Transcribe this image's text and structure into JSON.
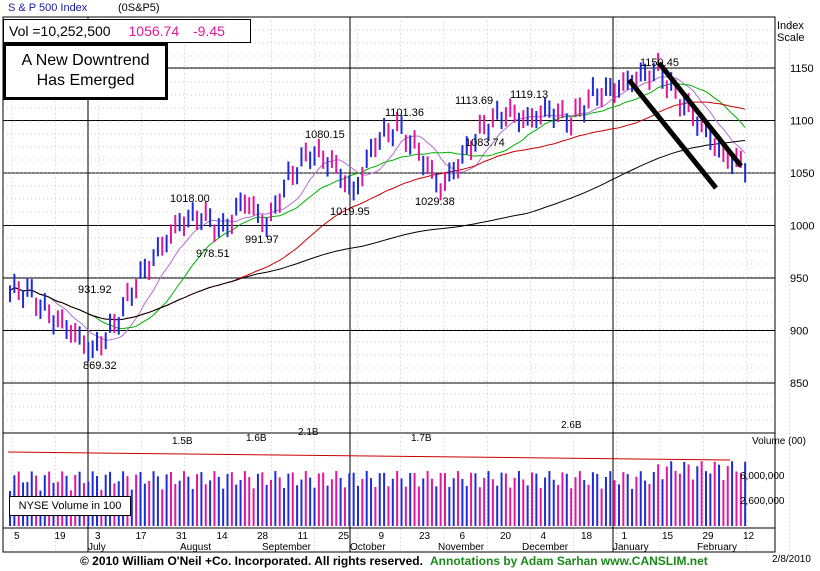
{
  "header": {
    "symbol": "S & P 500 Index",
    "code": "(0S&P5)",
    "volume": "Vol =10,252,500",
    "last": "1056.74",
    "change": "-9.45",
    "scale_label_1": "Index",
    "scale_label_2": "Scale"
  },
  "callout": {
    "line1": "A New Downtrend",
    "line2": "Has Emerged"
  },
  "volume_panel": {
    "legend": "NYSE  Volume in 100",
    "title": "Volume (00)",
    "ticks": [
      "6,000,000",
      "2,600,000"
    ],
    "annotations": [
      "1.5B",
      "1.6B",
      "2.1B",
      "1.7B",
      "2.6B"
    ]
  },
  "footer": {
    "copyright": "© 2010 William O'Neil +Co. Incorporated. All rights reserved.",
    "annotations": "Annotations by Adam Sarhan www.CANSLIM.net",
    "date": "2/8/2010"
  },
  "colors": {
    "up": "#1f2bd6",
    "down": "#e0169c",
    "ma_short": "#00b000",
    "ma_mid": "#cc0000",
    "ma_long": "#000000",
    "ma_10": "#b070d0",
    "accent_change": "#e0169c"
  },
  "chart_data": {
    "type": "line",
    "title": "S & P 500 Index",
    "y_axis": {
      "min": 800,
      "max": 1175,
      "ticks": [
        850,
        900,
        950,
        1000,
        1050,
        1100,
        1150
      ]
    },
    "x_ticks": [
      "5",
      "19",
      "3",
      "17",
      "31",
      "14",
      "28",
      "11",
      "25",
      "9",
      "23",
      "6",
      "20",
      "4",
      "18",
      "1",
      "15",
      "29",
      "12"
    ],
    "months": [
      "July",
      "August",
      "September",
      "October",
      "November",
      "December",
      "January",
      "February"
    ],
    "labeled_points": [
      {
        "label": "931.92",
        "value": 931.92
      },
      {
        "label": "869.32",
        "value": 869.32
      },
      {
        "label": "1018.00",
        "value": 1018.0
      },
      {
        "label": "978.51",
        "value": 978.51
      },
      {
        "label": "991.97",
        "value": 991.97
      },
      {
        "label": "1080.15",
        "value": 1080.15
      },
      {
        "label": "1019.95",
        "value": 1019.95
      },
      {
        "label": "1101.36",
        "value": 1101.36
      },
      {
        "label": "1029.38",
        "value": 1029.38
      },
      {
        "label": "1113.69",
        "value": 1113.69
      },
      {
        "label": "1083.74",
        "value": 1083.74
      },
      {
        "label": "1119.13",
        "value": 1119.13
      },
      {
        "label": "1150.45",
        "value": 1150.45
      }
    ],
    "weekly_close": [
      {
        "week": 1,
        "close": 938
      },
      {
        "week": 2,
        "close": 915
      },
      {
        "week": 3,
        "close": 900
      },
      {
        "week": 4,
        "close": 880
      },
      {
        "week": 5,
        "close": 905
      },
      {
        "week": 6,
        "close": 945
      },
      {
        "week": 7,
        "close": 975
      },
      {
        "week": 8,
        "close": 1003
      },
      {
        "week": 9,
        "close": 1010
      },
      {
        "week": 10,
        "close": 995
      },
      {
        "week": 11,
        "close": 1025
      },
      {
        "week": 12,
        "close": 1000
      },
      {
        "week": 13,
        "close": 1045
      },
      {
        "week": 14,
        "close": 1070
      },
      {
        "week": 15,
        "close": 1060
      },
      {
        "week": 16,
        "close": 1030
      },
      {
        "week": 17,
        "close": 1080
      },
      {
        "week": 18,
        "close": 1095
      },
      {
        "week": 19,
        "close": 1070
      },
      {
        "week": 20,
        "close": 1035
      },
      {
        "week": 21,
        "close": 1065
      },
      {
        "week": 22,
        "close": 1095
      },
      {
        "week": 23,
        "close": 1108
      },
      {
        "week": 24,
        "close": 1100
      },
      {
        "week": 25,
        "close": 1110
      },
      {
        "week": 26,
        "close": 1100
      },
      {
        "week": 27,
        "close": 1125
      },
      {
        "week": 28,
        "close": 1130
      },
      {
        "week": 29,
        "close": 1140
      },
      {
        "week": 30,
        "close": 1148
      },
      {
        "week": 31,
        "close": 1120
      },
      {
        "week": 32,
        "close": 1095
      },
      {
        "week": 33,
        "close": 1066
      },
      {
        "week": 34,
        "close": 1056.74
      }
    ],
    "volume_annotations": [
      "1.5B",
      "1.6B",
      "2.1B",
      "1.7B",
      "2.6B"
    ],
    "grid": true
  }
}
